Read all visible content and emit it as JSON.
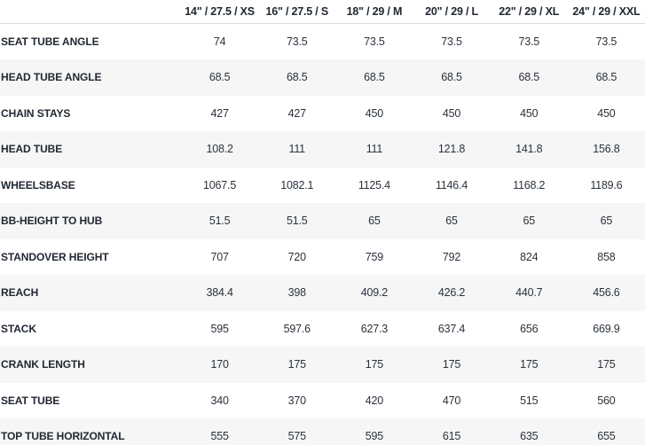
{
  "chart_data": {
    "type": "table",
    "columns": [
      "14\" / 27.5 / XS",
      "16\" / 27.5 / S",
      "18\" / 29 / M",
      "20\" / 29 / L",
      "22\" / 29 / XL",
      "24\" / 29 / XXL"
    ],
    "rows": [
      {
        "label": "SEAT TUBE ANGLE",
        "values": [
          "74",
          "73.5",
          "73.5",
          "73.5",
          "73.5",
          "73.5"
        ]
      },
      {
        "label": "HEAD TUBE ANGLE",
        "values": [
          "68.5",
          "68.5",
          "68.5",
          "68.5",
          "68.5",
          "68.5"
        ]
      },
      {
        "label": "CHAIN STAYS",
        "values": [
          "427",
          "427",
          "450",
          "450",
          "450",
          "450"
        ]
      },
      {
        "label": "HEAD TUBE",
        "values": [
          "108.2",
          "111",
          "111",
          "121.8",
          "141.8",
          "156.8"
        ]
      },
      {
        "label": "WHEELSBASE",
        "values": [
          "1067.5",
          "1082.1",
          "1125.4",
          "1146.4",
          "1168.2",
          "1189.6"
        ]
      },
      {
        "label": "BB-HEIGHT TO HUB",
        "values": [
          "51.5",
          "51.5",
          "65",
          "65",
          "65",
          "65"
        ]
      },
      {
        "label": "STANDOVER HEIGHT",
        "values": [
          "707",
          "720",
          "759",
          "792",
          "824",
          "858"
        ]
      },
      {
        "label": "REACH",
        "values": [
          "384.4",
          "398",
          "409.2",
          "426.2",
          "440.7",
          "456.6"
        ]
      },
      {
        "label": "STACK",
        "values": [
          "595",
          "597.6",
          "627.3",
          "637.4",
          "656",
          "669.9"
        ]
      },
      {
        "label": "CRANK LENGTH",
        "values": [
          "170",
          "175",
          "175",
          "175",
          "175",
          "175"
        ]
      },
      {
        "label": "SEAT TUBE",
        "values": [
          "340",
          "370",
          "420",
          "470",
          "515",
          "560"
        ]
      },
      {
        "label": "TOP TUBE HORIZONTAL",
        "values": [
          "555",
          "575",
          "595",
          "615",
          "635",
          "655"
        ]
      }
    ],
    "layout": {
      "stripe_even_rows": true,
      "header_underline": true,
      "label_column_align": "left",
      "value_align": "center"
    }
  },
  "colors": {
    "text": "#212832",
    "value_text": "#2a323c",
    "stripe": "#f6f6f6",
    "header_border": "#dcdcdc",
    "background": "#ffffff"
  }
}
